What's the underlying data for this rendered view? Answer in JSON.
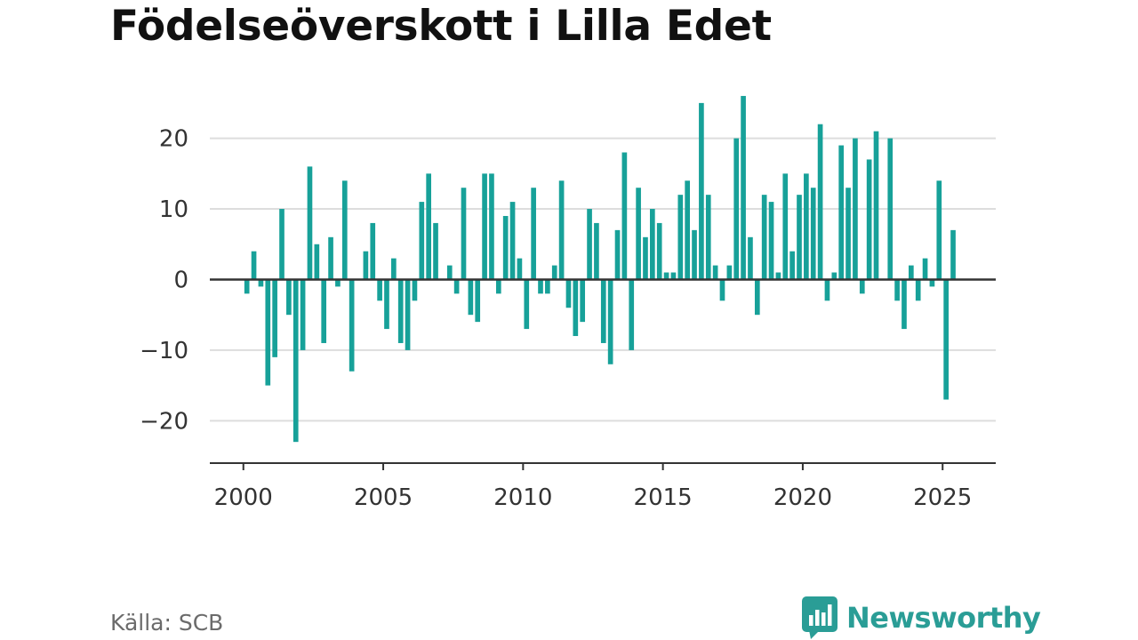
{
  "title": "Födelseöverskott i Lilla Edet",
  "source": "Källa: SCB",
  "logo_text": "Newsworthy",
  "colors": {
    "bar": "#17a199",
    "grid": "#dddddd",
    "axis": "#333333",
    "text": "#333333",
    "brand": "#2a9d96"
  },
  "chart_data": {
    "type": "bar",
    "title": "Födelseöverskott i Lilla Edet",
    "xlabel": "",
    "ylabel": "",
    "frequency": "quarterly",
    "start": "2000-Q1",
    "ylim": [
      -26,
      27
    ],
    "xlim": [
      1998.8,
      2026.9
    ],
    "xticks": [
      2000,
      2005,
      2010,
      2015,
      2020,
      2025
    ],
    "xtick_labels": [
      "2000",
      "2005",
      "2010",
      "2015",
      "2020",
      "2025"
    ],
    "yticks": [
      20,
      10,
      0,
      -10,
      -20
    ],
    "ytick_labels": [
      "20",
      "10",
      "0",
      "−10",
      "−20"
    ],
    "grid": true,
    "values": [
      -2,
      4,
      -1,
      -15,
      -11,
      10,
      -5,
      -23,
      -10,
      16,
      5,
      -9,
      6,
      -1,
      14,
      -13,
      0,
      4,
      8,
      -3,
      -7,
      3,
      -9,
      -10,
      -3,
      11,
      15,
      8,
      0,
      2,
      -2,
      13,
      -5,
      -6,
      15,
      15,
      -2,
      9,
      11,
      3,
      -7,
      13,
      -2,
      -2,
      2,
      14,
      -4,
      -8,
      -6,
      10,
      8,
      -9,
      -12,
      7,
      18,
      -10,
      13,
      6,
      10,
      8,
      1,
      1,
      12,
      14,
      7,
      25,
      12,
      2,
      -3,
      2,
      20,
      26,
      6,
      -5,
      12,
      11,
      1,
      15,
      4,
      12,
      15,
      13,
      22,
      -3,
      1,
      19,
      13,
      20,
      -2,
      17,
      21,
      0,
      20,
      -3,
      -7,
      2,
      -3,
      3,
      -1,
      14,
      -17,
      7
    ]
  }
}
